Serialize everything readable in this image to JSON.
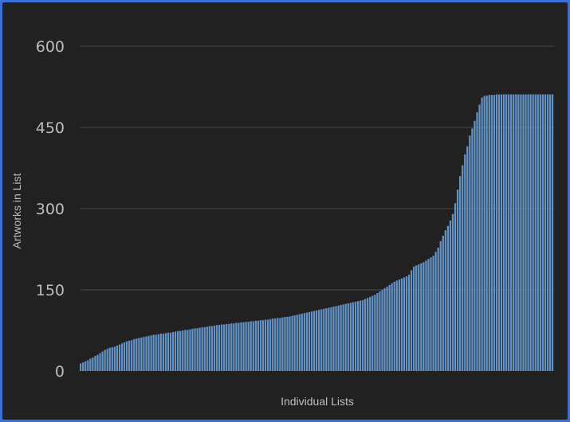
{
  "chart_data": {
    "type": "bar",
    "xlabel": "Individual Lists",
    "ylabel": "Artworks in List",
    "ylim": [
      0,
      600
    ],
    "yticks": [
      0,
      150,
      300,
      450,
      600
    ],
    "grid": true,
    "bar_color": "#6393c6",
    "background": "#212121",
    "values": [
      14,
      16,
      18,
      20,
      23,
      25,
      28,
      30,
      33,
      36,
      39,
      41,
      43,
      44,
      45,
      47,
      49,
      51,
      53,
      55,
      56,
      57,
      59,
      60,
      61,
      62,
      63,
      64,
      65,
      66,
      67,
      67,
      68,
      69,
      69,
      70,
      71,
      71,
      72,
      73,
      74,
      74,
      75,
      76,
      76,
      77,
      78,
      79,
      79,
      80,
      81,
      81,
      82,
      83,
      83,
      84,
      85,
      85,
      86,
      86,
      87,
      87,
      88,
      88,
      89,
      89,
      90,
      90,
      91,
      91,
      92,
      92,
      93,
      93,
      94,
      94,
      95,
      95,
      96,
      97,
      97,
      98,
      98,
      99,
      100,
      100,
      101,
      102,
      103,
      104,
      105,
      106,
      107,
      108,
      109,
      110,
      111,
      112,
      113,
      114,
      115,
      116,
      117,
      118,
      119,
      120,
      121,
      122,
      123,
      124,
      125,
      126,
      127,
      128,
      129,
      130,
      131,
      133,
      135,
      137,
      139,
      141,
      144,
      147,
      150,
      153,
      156,
      159,
      162,
      165,
      167,
      169,
      171,
      173,
      175,
      178,
      186,
      193,
      195,
      197,
      199,
      201,
      204,
      207,
      210,
      213,
      220,
      228,
      240,
      250,
      260,
      268,
      278,
      290,
      310,
      335,
      360,
      380,
      400,
      415,
      435,
      448,
      462,
      478,
      492,
      505,
      508,
      509,
      510,
      510,
      510,
      511,
      511,
      511,
      511,
      511,
      511,
      511,
      511,
      511,
      511,
      511,
      511,
      511,
      511,
      511,
      511,
      511,
      511,
      511,
      511,
      511,
      511,
      511,
      511
    ]
  }
}
